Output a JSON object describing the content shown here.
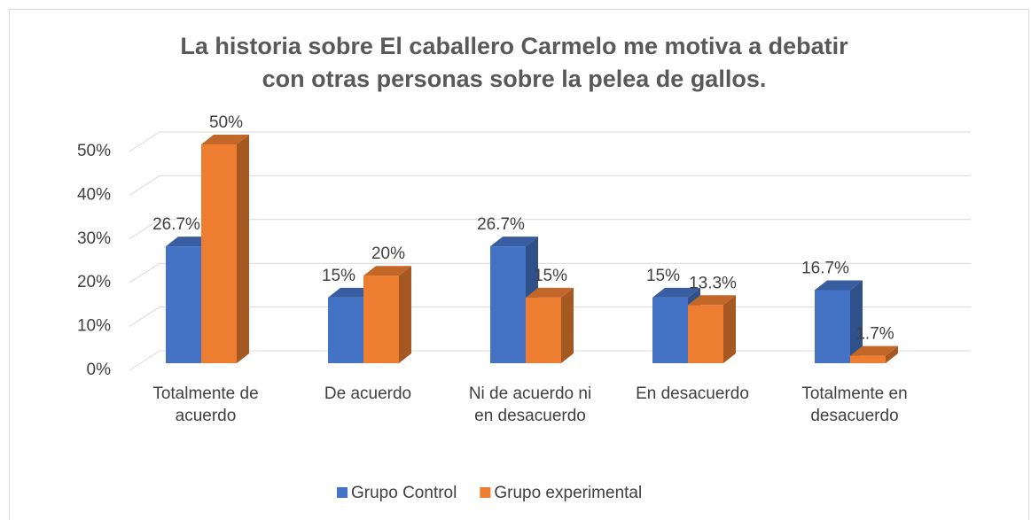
{
  "chart_data": {
    "type": "bar3d",
    "title": "La historia sobre El caballero Carmelo me motiva a debatir con otras personas sobre la pelea de gallos.",
    "categories": [
      "Totalmente de acuerdo",
      "De acuerdo",
      "Ni de acuerdo ni en desacuerdo",
      "En desacuerdo",
      "Totalmente en desacuerdo"
    ],
    "series": [
      {
        "name": "Grupo Control",
        "color": "#4472c4",
        "values": [
          26.7,
          15,
          26.7,
          15,
          16.7
        ],
        "value_labels": [
          "26.7%",
          "15%",
          "26.7%",
          "15%",
          "16.7%"
        ]
      },
      {
        "name": "Grupo experimental",
        "color": "#ed7d31",
        "values": [
          50,
          20,
          15,
          13.3,
          1.7
        ],
        "value_labels": [
          "50%",
          "20%",
          "15%",
          "13.3%",
          "1.7%"
        ]
      }
    ],
    "ylim": [
      0,
      50
    ],
    "yticks": [
      {
        "value": 0,
        "label": "0%"
      },
      {
        "value": 10,
        "label": "10%"
      },
      {
        "value": 20,
        "label": "20%"
      },
      {
        "value": 30,
        "label": "30%"
      },
      {
        "value": 40,
        "label": "40%"
      },
      {
        "value": 50,
        "label": "50%"
      }
    ],
    "grid": true,
    "legend": "bottom"
  }
}
